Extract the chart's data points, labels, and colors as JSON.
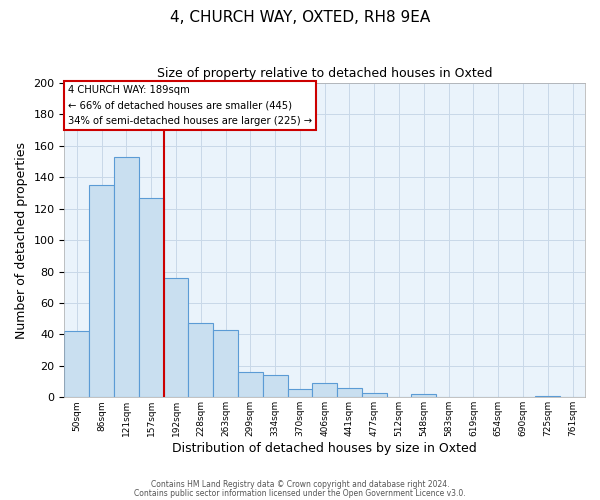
{
  "title": "4, CHURCH WAY, OXTED, RH8 9EA",
  "subtitle": "Size of property relative to detached houses in Oxted",
  "xlabel": "Distribution of detached houses by size in Oxted",
  "ylabel": "Number of detached properties",
  "bin_labels": [
    "50sqm",
    "86sqm",
    "121sqm",
    "157sqm",
    "192sqm",
    "228sqm",
    "263sqm",
    "299sqm",
    "334sqm",
    "370sqm",
    "406sqm",
    "441sqm",
    "477sqm",
    "512sqm",
    "548sqm",
    "583sqm",
    "619sqm",
    "654sqm",
    "690sqm",
    "725sqm",
    "761sqm"
  ],
  "bar_values": [
    42,
    135,
    153,
    127,
    76,
    47,
    43,
    16,
    14,
    5,
    9,
    6,
    3,
    0,
    2,
    0,
    0,
    0,
    0,
    1,
    0
  ],
  "bar_color": "#c9dff0",
  "bar_edge_color": "#5b9bd5",
  "vline_x": 4,
  "vline_color": "#cc0000",
  "ylim": [
    0,
    200
  ],
  "yticks": [
    0,
    20,
    40,
    60,
    80,
    100,
    120,
    140,
    160,
    180,
    200
  ],
  "annotation_box_title": "4 CHURCH WAY: 189sqm",
  "annotation_line1": "← 66% of detached houses are smaller (445)",
  "annotation_line2": "34% of semi-detached houses are larger (225) →",
  "annotation_box_color": "#ffffff",
  "annotation_box_edge": "#cc0000",
  "footer1": "Contains HM Land Registry data © Crown copyright and database right 2024.",
  "footer2": "Contains public sector information licensed under the Open Government Licence v3.0.",
  "grid_color": "#c8d8e8",
  "background_color": "#eaf3fb"
}
